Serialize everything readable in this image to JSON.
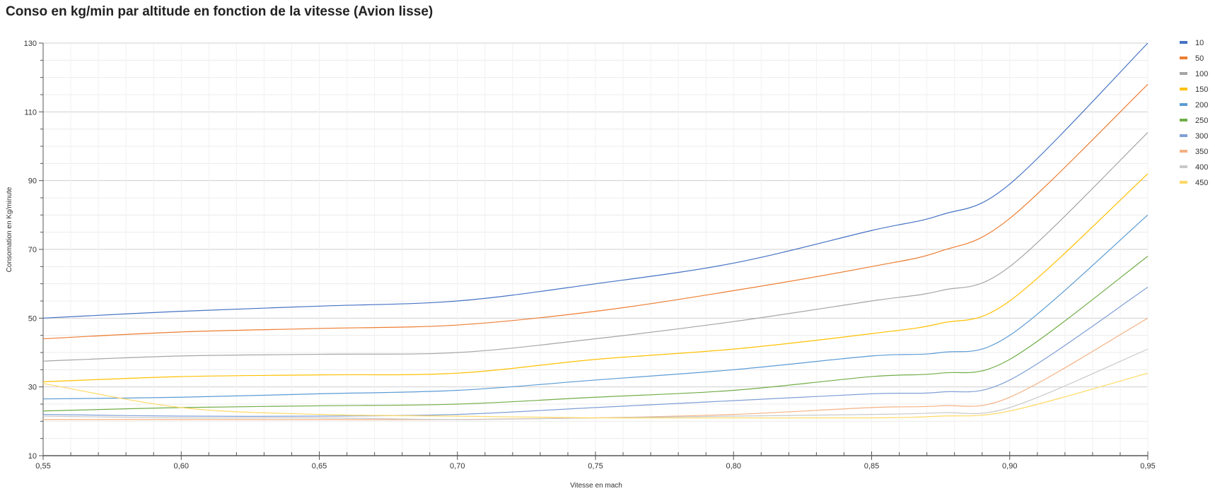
{
  "chart_data": {
    "type": "line",
    "title": "Conso en kg/min par altitude en fonction de la vitesse (Avion lisse)",
    "xlabel": "Vitesse en mach",
    "ylabel": "Consomation en Kg/minute",
    "xlim": [
      0.55,
      0.95
    ],
    "ylim": [
      10,
      130
    ],
    "x_ticks": [
      "0,55",
      "0,60",
      "0,65",
      "0,70",
      "0,75",
      "0,80",
      "0,85",
      "0,90",
      "0,95"
    ],
    "y_ticks": [
      "10",
      "30",
      "50",
      "70",
      "90",
      "110",
      "130"
    ],
    "grid": true,
    "legend_position": "right",
    "x": [
      0.55,
      0.6,
      0.65,
      0.7,
      0.75,
      0.8,
      0.85,
      0.875,
      0.9,
      0.95
    ],
    "series": [
      {
        "name": "10",
        "color": "#4472C4",
        "values": [
          50,
          52,
          53.5,
          55,
          60,
          66,
          75.5,
          80,
          89,
          130
        ]
      },
      {
        "name": "50",
        "color": "#ED7D31",
        "values": [
          44,
          46,
          47,
          48,
          52,
          58,
          65,
          69.5,
          79,
          118
        ]
      },
      {
        "name": "100",
        "color": "#A5A5A5",
        "values": [
          37.5,
          39,
          39.5,
          40,
          44,
          49,
          55,
          58,
          65,
          104
        ]
      },
      {
        "name": "150",
        "color": "#FFC000",
        "values": [
          31.5,
          33,
          33.5,
          34,
          38,
          41,
          45.5,
          48.5,
          55,
          92
        ]
      },
      {
        "name": "200",
        "color": "#5B9BD5",
        "values": [
          26.5,
          27,
          28,
          29,
          32,
          35,
          39,
          40,
          45,
          80
        ]
      },
      {
        "name": "250",
        "color": "#70AD47",
        "values": [
          23,
          24,
          24.5,
          25,
          27,
          29,
          33,
          34,
          38,
          68
        ]
      },
      {
        "name": "300",
        "color": "#7F9FD6",
        "values": [
          22,
          21.5,
          21.5,
          22,
          24,
          26,
          28,
          28.5,
          32,
          59
        ]
      },
      {
        "name": "350",
        "color": "#F4B183",
        "values": [
          20.5,
          20.5,
          20.5,
          20.5,
          21,
          22,
          24,
          24.5,
          27,
          50
        ]
      },
      {
        "name": "400",
        "color": "#C9C9C9",
        "values": [
          21.5,
          21,
          21,
          20.5,
          21,
          21.5,
          22,
          22.5,
          24,
          41
        ]
      },
      {
        "name": "450",
        "color": "#FFD966",
        "values": [
          31,
          24,
          22,
          21.5,
          21,
          21,
          21,
          21.5,
          23,
          34
        ]
      }
    ]
  }
}
